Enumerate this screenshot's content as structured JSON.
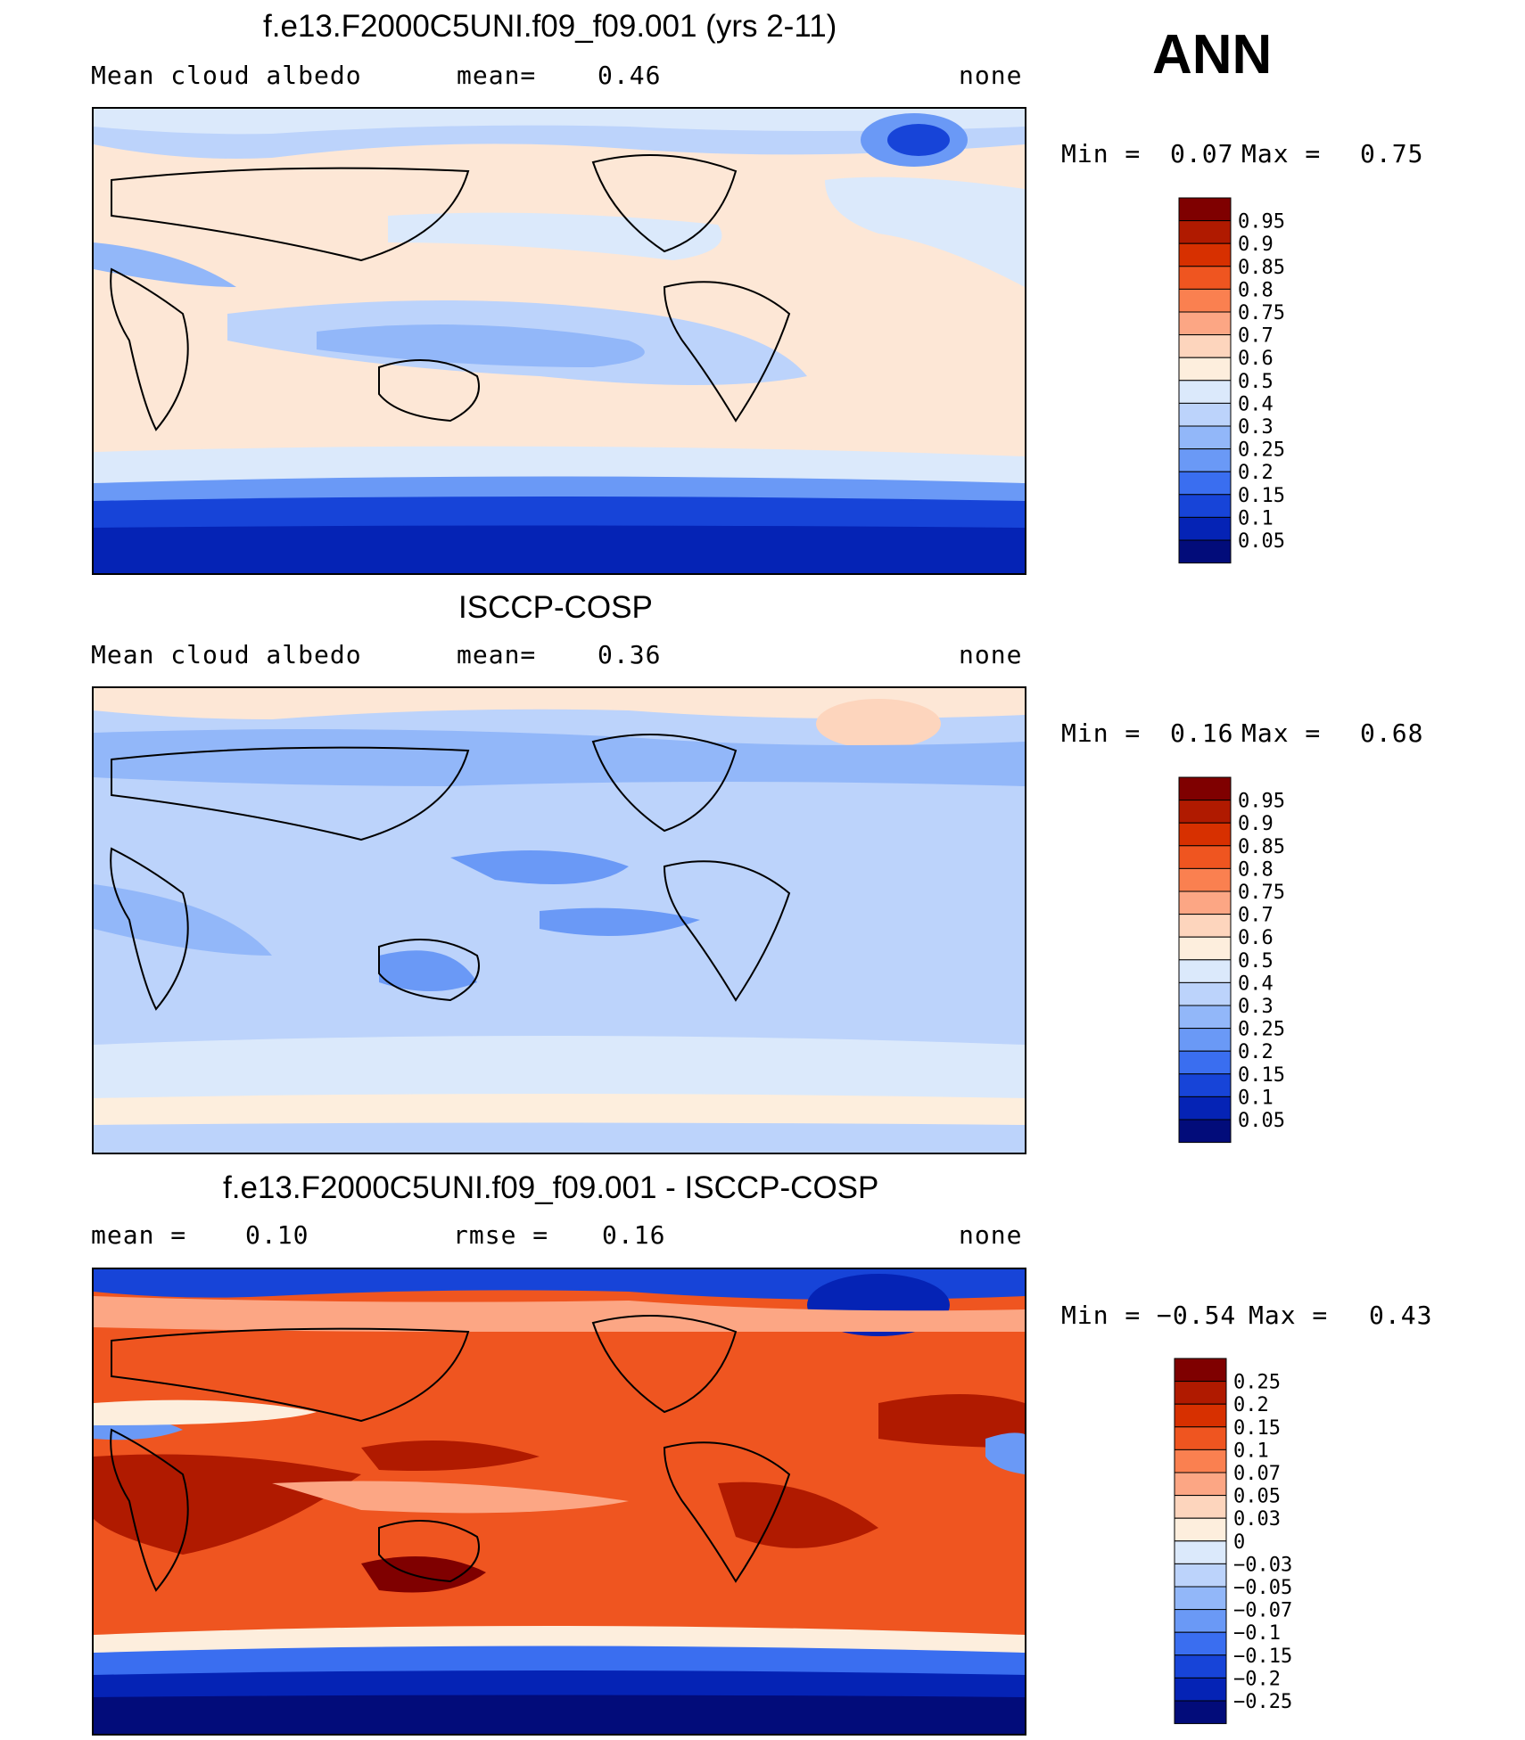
{
  "season": "ANN",
  "panels": [
    {
      "title": "f.e13.F2000C5UNI.f09_f09.001 (yrs 2-11)",
      "left_label": "Mean cloud albedo",
      "mid_label": "mean=",
      "mid_value": "0.46",
      "right_label": "none",
      "minmax": {
        "min_label": "Min =",
        "min": "0.07",
        "max_label": "Max =",
        "max": "0.75"
      },
      "legend": [
        "0.95",
        "0.9",
        "0.85",
        "0.8",
        "0.75",
        "0.7",
        "0.6",
        "0.5",
        "0.4",
        "0.3",
        "0.25",
        "0.2",
        "0.15",
        "0.1",
        "0.05"
      ]
    },
    {
      "title": "ISCCP-COSP",
      "left_label": "Mean cloud albedo",
      "mid_label": "mean=",
      "mid_value": "0.36",
      "right_label": "none",
      "minmax": {
        "min_label": "Min =",
        "min": "0.16",
        "max_label": "Max =",
        "max": "0.68"
      },
      "legend": [
        "0.95",
        "0.9",
        "0.85",
        "0.8",
        "0.75",
        "0.7",
        "0.6",
        "0.5",
        "0.4",
        "0.3",
        "0.25",
        "0.2",
        "0.15",
        "0.1",
        "0.05"
      ]
    },
    {
      "title": "f.e13.F2000C5UNI.f09_f09.001 - ISCCP-COSP",
      "left_label": "mean =",
      "left_value": "0.10",
      "mid_label": "rmse =",
      "mid_value": "0.16",
      "right_label": "none",
      "minmax": {
        "min_label": "Min =",
        "min": "−0.54",
        "max_label": "Max =",
        "max": "0.43"
      },
      "legend": [
        "0.25",
        "0.2",
        "0.15",
        "0.1",
        "0.07",
        "0.05",
        "0.03",
        "0",
        "−0.03",
        "−0.05",
        "−0.07",
        "−0.1",
        "−0.15",
        "−0.2",
        "−0.25"
      ]
    }
  ],
  "colorbar_colors": [
    "#7f0000",
    "#b01a00",
    "#d73000",
    "#ef5520",
    "#fa8050",
    "#fca684",
    "#fdd5bd",
    "#fdeedd",
    "#dbe9fb",
    "#bcd3fb",
    "#92b7f9",
    "#6a99f6",
    "#3a6ef0",
    "#1744d8",
    "#0523b5",
    "#020c7a"
  ]
}
